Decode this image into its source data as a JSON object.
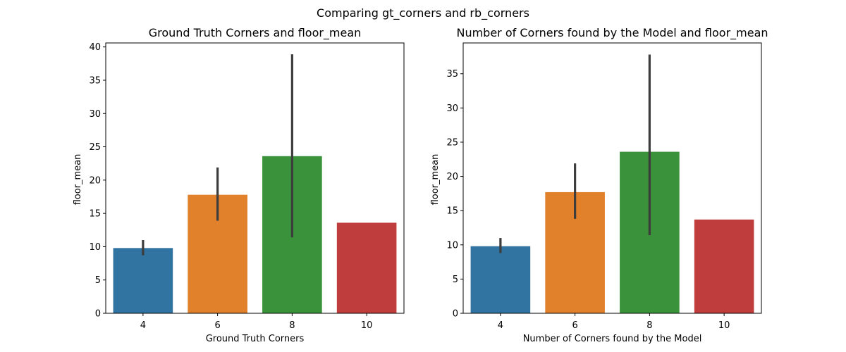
{
  "figure": {
    "suptitle": "Comparing gt_corners and rb_corners"
  },
  "chart_data": [
    {
      "type": "bar",
      "title": "Ground Truth Corners and floor_mean",
      "xlabel": "Ground Truth Corners",
      "ylabel": "floor_mean",
      "categories": [
        "4",
        "6",
        "8",
        "10"
      ],
      "values": [
        9.8,
        17.8,
        23.6,
        13.6
      ],
      "error_low": [
        8.7,
        13.9,
        11.4,
        13.6
      ],
      "error_high": [
        11.0,
        21.9,
        38.9,
        13.6
      ],
      "ylim": [
        0,
        40.6
      ],
      "yticks": [
        0,
        5,
        10,
        15,
        20,
        25,
        30,
        35,
        40
      ],
      "colors": [
        "#3274a1",
        "#e1812c",
        "#3a923a",
        "#c03d3e"
      ],
      "errorbar_color": "#3d3d3d",
      "grid": false,
      "legend": "none"
    },
    {
      "type": "bar",
      "title": "Number of Corners found by the Model and floor_mean",
      "xlabel": "Number of Corners found by the Model",
      "ylabel": "floor_mean",
      "categories": [
        "4",
        "6",
        "8",
        "10"
      ],
      "values": [
        9.8,
        17.7,
        23.6,
        13.7
      ],
      "error_low": [
        8.8,
        13.8,
        11.4,
        13.7
      ],
      "error_high": [
        11.0,
        21.9,
        37.8,
        13.7
      ],
      "ylim": [
        0,
        39.5
      ],
      "yticks": [
        0,
        5,
        10,
        15,
        20,
        25,
        30,
        35
      ],
      "colors": [
        "#3274a1",
        "#e1812c",
        "#3a923a",
        "#c03d3e"
      ],
      "errorbar_color": "#3d3d3d",
      "grid": false,
      "legend": "none"
    }
  ]
}
